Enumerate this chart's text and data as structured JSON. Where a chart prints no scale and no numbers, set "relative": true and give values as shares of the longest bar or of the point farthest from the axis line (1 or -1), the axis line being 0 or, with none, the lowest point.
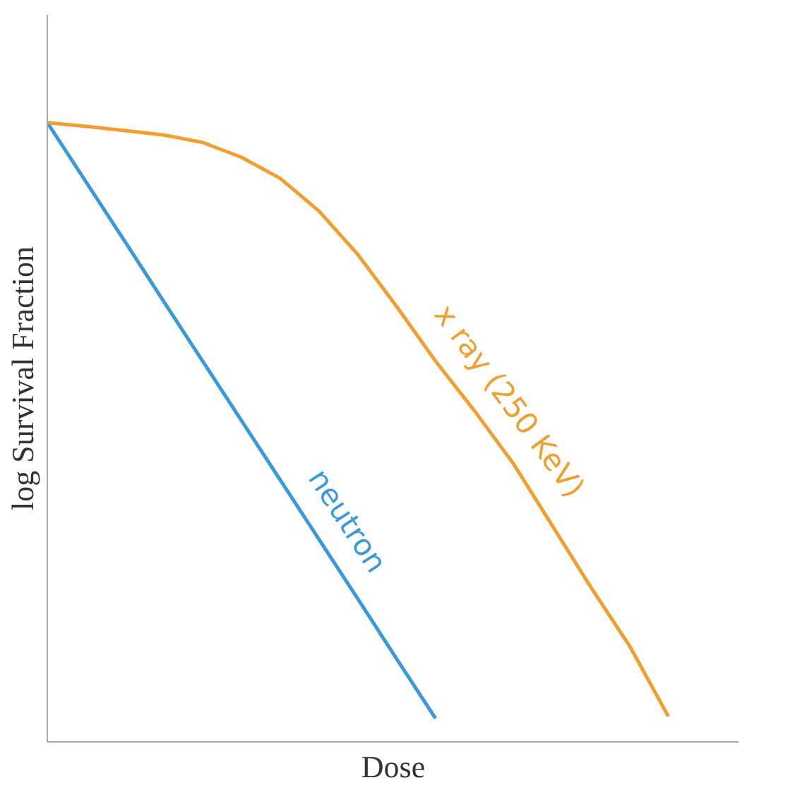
{
  "chart_data": {
    "type": "line",
    "relative": true,
    "xlabel": "Dose",
    "ylabel": "log Survival Fraction",
    "legend": false,
    "grid": false,
    "marker": "none",
    "line_style": "solid",
    "categories": [
      null,
      null,
      null,
      null,
      null,
      null,
      null,
      null,
      null,
      null,
      null,
      null,
      null,
      null,
      null,
      null,
      null
    ],
    "series": [
      {
        "name": "neutron",
        "color": "#3a9ad9",
        "values": [
          1.0,
          0.904,
          0.808,
          0.711,
          0.615,
          0.519,
          0.423,
          0.327,
          0.231,
          0.134,
          0.038,
          null,
          null,
          null,
          null,
          null,
          null
        ]
      },
      {
        "name": "x ray (250 KeV)",
        "color": "#f0a030",
        "values": [
          1.0,
          0.994,
          0.987,
          0.98,
          0.968,
          0.944,
          0.91,
          0.857,
          0.787,
          0.703,
          0.615,
          0.535,
          0.45,
          0.35,
          0.25,
          0.155,
          0.041
        ]
      }
    ]
  }
}
